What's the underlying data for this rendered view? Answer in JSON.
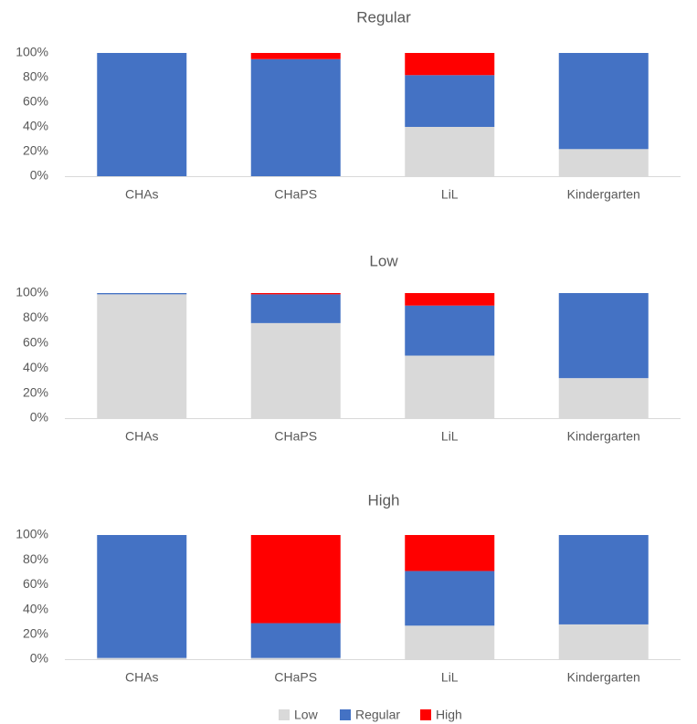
{
  "chart_data": [
    {
      "type": "stacked_bar",
      "title": "Regular",
      "categories": [
        "CHAs",
        "CHaPS",
        "LiL",
        "Kindergarten"
      ],
      "series": [
        {
          "color": "#d9d9d9",
          "values": [
            0,
            0,
            40,
            22
          ]
        },
        {
          "color": "#4472c4",
          "values": [
            100,
            95,
            42,
            78
          ]
        },
        {
          "color": "#ff0000",
          "values": [
            0,
            5,
            18,
            0
          ]
        }
      ],
      "ylim": [
        0,
        100
      ],
      "yticks": [
        {
          "value": 0,
          "label": "0%"
        },
        {
          "value": 20,
          "label": "20%"
        },
        {
          "value": 40,
          "label": "40%"
        },
        {
          "value": 60,
          "label": "60%"
        },
        {
          "value": 80,
          "label": "80%"
        },
        {
          "value": 100,
          "label": "100%"
        }
      ],
      "grid": false
    },
    {
      "type": "stacked_bar",
      "title": "Low",
      "categories": [
        "CHAs",
        "CHaPS",
        "LiL",
        "Kindergarten"
      ],
      "series": [
        {
          "color": "#d9d9d9",
          "values": [
            99,
            76,
            50,
            32
          ]
        },
        {
          "color": "#4472c4",
          "values": [
            1,
            23,
            40,
            68
          ]
        },
        {
          "color": "#ff0000",
          "values": [
            0,
            1,
            10,
            0
          ]
        }
      ],
      "ylim": [
        0,
        100
      ],
      "yticks": [
        {
          "value": 0,
          "label": "0%"
        },
        {
          "value": 20,
          "label": "20%"
        },
        {
          "value": 40,
          "label": "40%"
        },
        {
          "value": 60,
          "label": "60%"
        },
        {
          "value": 80,
          "label": "80%"
        },
        {
          "value": 100,
          "label": "100%"
        }
      ],
      "grid": false
    },
    {
      "type": "stacked_bar",
      "title": "High",
      "categories": [
        "CHAs",
        "CHaPS",
        "LiL",
        "Kindergarten"
      ],
      "series": [
        {
          "name": "Low",
          "color": "#d9d9d9",
          "values": [
            1,
            1,
            27,
            28
          ]
        },
        {
          "name": "Regular",
          "color": "#4472c4",
          "values": [
            99,
            28,
            44,
            72
          ]
        },
        {
          "name": "High",
          "color": "#ff0000",
          "values": [
            0,
            71,
            29,
            0
          ]
        }
      ],
      "ylim": [
        0,
        100
      ],
      "yticks": [
        {
          "value": 0,
          "label": "0%"
        },
        {
          "value": 20,
          "label": "20%"
        },
        {
          "value": 40,
          "label": "40%"
        },
        {
          "value": 60,
          "label": "60%"
        },
        {
          "value": 80,
          "label": "80%"
        },
        {
          "value": 100,
          "label": "100%"
        }
      ],
      "grid": false,
      "legend": "bottom"
    }
  ]
}
